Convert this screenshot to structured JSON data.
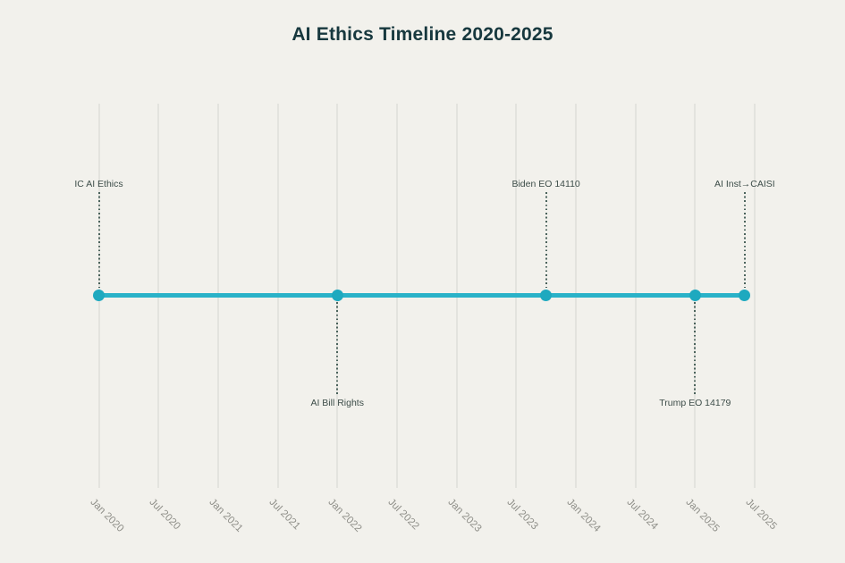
{
  "page": {
    "background_color": "#f2f1ec"
  },
  "chart_data": {
    "type": "line",
    "title": "AI Ethics Timeline 2020-2025",
    "xlabel": "",
    "ylabel": "",
    "x_unit": "months since Jan 2020",
    "xlim": [
      0,
      66
    ],
    "grid": true,
    "legend": false,
    "x_ticks": [
      {
        "month": 0,
        "label": "Jan 2020"
      },
      {
        "month": 6,
        "label": "Jul 2020"
      },
      {
        "month": 12,
        "label": "Jan 2021"
      },
      {
        "month": 18,
        "label": "Jul 2021"
      },
      {
        "month": 24,
        "label": "Jan 2022"
      },
      {
        "month": 30,
        "label": "Jul 2022"
      },
      {
        "month": 36,
        "label": "Jan 2023"
      },
      {
        "month": 42,
        "label": "Jul 2023"
      },
      {
        "month": 48,
        "label": "Jan 2024"
      },
      {
        "month": 54,
        "label": "Jul 2024"
      },
      {
        "month": 60,
        "label": "Jan 2025"
      },
      {
        "month": 66,
        "label": "Jul 2025"
      }
    ],
    "events": [
      {
        "label": "IC AI Ethics",
        "month": 0,
        "approx_date": "Jan 2020",
        "label_side": "above"
      },
      {
        "label": "AI Bill Rights",
        "month": 24,
        "approx_date": "Jan 2022",
        "label_side": "below"
      },
      {
        "label": "Biden EO 14110",
        "month": 45,
        "approx_date": "Oct 2023",
        "label_side": "above"
      },
      {
        "label": "Trump EO 14179",
        "month": 60,
        "approx_date": "Jan 2025",
        "label_side": "below"
      },
      {
        "label": "AI Inst→CAISI",
        "month": 65,
        "approx_date": "Jun 2025",
        "label_side": "above"
      }
    ],
    "colors": {
      "title": "#17383e",
      "line": "#2ab2c8",
      "marker": "#1ea9bf",
      "grid": "#e3e3de",
      "connector": "#4b635c",
      "event_label": "#3d4d49",
      "tick_label": "#8f8f89"
    }
  }
}
